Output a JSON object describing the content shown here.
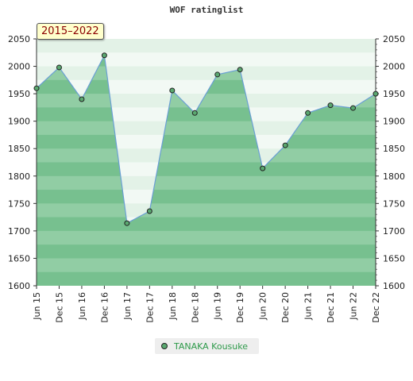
{
  "title": "WOF ratinglist",
  "range_label": "2015–2022",
  "legend": {
    "label": "TANAKA Kousuke"
  },
  "colors": {
    "line": "#6a9fd4",
    "area": "#7cc493",
    "marker_fill": "#5aa870",
    "marker_stroke": "#222222",
    "band_light": "#ffffff",
    "band_dark": "#b9dfc4"
  },
  "chart_data": {
    "type": "area",
    "title": "WOF ratinglist",
    "xlabel": "",
    "ylabel": "",
    "ylim": [
      1600,
      2050
    ],
    "yticks": [
      1600,
      1650,
      1700,
      1750,
      1800,
      1850,
      1900,
      1950,
      2000,
      2050
    ],
    "categories": [
      "Jun 15",
      "Dec 15",
      "Jun 16",
      "Dec 16",
      "Jun 17",
      "Dec 17",
      "Jun 18",
      "Dec 18",
      "Jun 19",
      "Dec 19",
      "Jun 20",
      "Dec 20",
      "Jun 21",
      "Dec 21",
      "Jun 22",
      "Dec 22"
    ],
    "series": [
      {
        "name": "TANAKA Kousuke",
        "values": [
          1960,
          1998,
          1940,
          2020,
          1714,
          1736,
          1956,
          1915,
          1985,
          1994,
          1814,
          1856,
          1915,
          1929,
          1924,
          1950
        ]
      }
    ],
    "grid": true,
    "legend_position": "bottom-center"
  }
}
